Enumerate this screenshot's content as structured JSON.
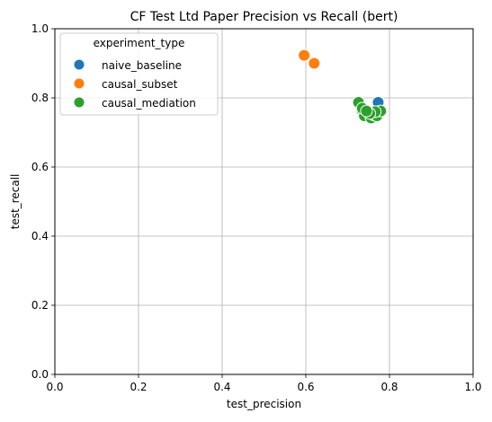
{
  "chart_data": {
    "type": "scatter",
    "title": "CF Test Ltd Paper Precision vs Recall (bert)",
    "xlabel": "test_precision",
    "ylabel": "test_recall",
    "xlim": [
      0.0,
      1.0
    ],
    "ylim": [
      0.0,
      1.0
    ],
    "xticks": [
      "0.0",
      "0.2",
      "0.4",
      "0.6",
      "0.8",
      "1.0"
    ],
    "yticks": [
      "0.0",
      "0.2",
      "0.4",
      "0.6",
      "0.8",
      "1.0"
    ],
    "grid": true,
    "legend": {
      "title": "experiment_type",
      "placement": "top-left"
    },
    "series": [
      {
        "name": "naive_baseline",
        "color": "#1f77b4",
        "points": [
          [
            0.773,
            0.787
          ]
        ]
      },
      {
        "name": "causal_subset",
        "color": "#ff7f0e",
        "points": [
          [
            0.596,
            0.923
          ],
          [
            0.62,
            0.9
          ]
        ]
      },
      {
        "name": "causal_mediation",
        "color": "#2ca02c",
        "points": [
          [
            0.726,
            0.787
          ],
          [
            0.734,
            0.765
          ],
          [
            0.746,
            0.757
          ],
          [
            0.74,
            0.748
          ],
          [
            0.756,
            0.742
          ],
          [
            0.762,
            0.751
          ],
          [
            0.77,
            0.748
          ],
          [
            0.779,
            0.762
          ],
          [
            0.766,
            0.76
          ],
          [
            0.753,
            0.755
          ],
          [
            0.735,
            0.77
          ],
          [
            0.745,
            0.762
          ]
        ]
      }
    ]
  }
}
